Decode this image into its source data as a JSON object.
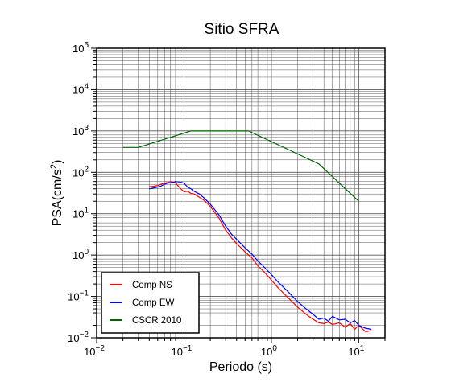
{
  "chart_data": {
    "type": "line",
    "title": "Sitio SFRA",
    "xlabel": "Periodo (s)",
    "ylabel": "PSA(cm/s2)",
    "xscale": "log",
    "yscale": "log",
    "xlim": [
      0.01,
      20
    ],
    "ylim": [
      0.01,
      100000
    ],
    "grid": true,
    "legend_position": "bottom-left",
    "x_tick_labels": [
      {
        "value": 0.01,
        "base": "10",
        "exp": "−2"
      },
      {
        "value": 0.1,
        "base": "10",
        "exp": "−1"
      },
      {
        "value": 1,
        "base": "10",
        "exp": "0"
      },
      {
        "value": 10,
        "base": "10",
        "exp": "1"
      }
    ],
    "y_tick_labels": [
      {
        "value": 0.01,
        "base": "10",
        "exp": "−2"
      },
      {
        "value": 0.1,
        "base": "10",
        "exp": "−1"
      },
      {
        "value": 1,
        "base": "10",
        "exp": "0"
      },
      {
        "value": 10,
        "base": "10",
        "exp": "1"
      },
      {
        "value": 100,
        "base": "10",
        "exp": "2"
      },
      {
        "value": 1000,
        "base": "10",
        "exp": "3"
      },
      {
        "value": 10000,
        "base": "10",
        "exp": "4"
      },
      {
        "value": 100000,
        "base": "10",
        "exp": "5"
      }
    ],
    "series": [
      {
        "name": "Comp NS",
        "color": "#ff0000",
        "x": [
          0.04,
          0.045,
          0.05,
          0.055,
          0.06,
          0.065,
          0.07,
          0.075,
          0.08,
          0.085,
          0.09,
          0.1,
          0.11,
          0.12,
          0.13,
          0.15,
          0.17,
          0.2,
          0.25,
          0.3,
          0.35,
          0.4,
          0.5,
          0.6,
          0.7,
          0.8,
          1.0,
          1.2,
          1.5,
          2.0,
          2.5,
          3.0,
          3.5,
          4.0,
          4.5,
          5.0,
          6.0,
          7.0,
          8.0,
          9.0,
          10.0,
          12.0,
          14.0
        ],
        "y": [
          45,
          46,
          48,
          52,
          55,
          57,
          60,
          58,
          56,
          48,
          42,
          34,
          35,
          31,
          30,
          25,
          21,
          15,
          8,
          4,
          2.6,
          1.9,
          1.2,
          0.85,
          0.55,
          0.42,
          0.25,
          0.16,
          0.1,
          0.055,
          0.037,
          0.028,
          0.023,
          0.022,
          0.024,
          0.021,
          0.023,
          0.018,
          0.022,
          0.016,
          0.02,
          0.014,
          0.015
        ]
      },
      {
        "name": "Comp EW",
        "color": "#0000ff",
        "x": [
          0.04,
          0.045,
          0.05,
          0.055,
          0.06,
          0.065,
          0.07,
          0.075,
          0.08,
          0.09,
          0.1,
          0.11,
          0.12,
          0.13,
          0.15,
          0.17,
          0.2,
          0.25,
          0.3,
          0.35,
          0.4,
          0.5,
          0.6,
          0.7,
          0.8,
          1.0,
          1.2,
          1.5,
          2.0,
          2.5,
          3.0,
          3.5,
          4.0,
          4.5,
          5.0,
          6.0,
          7.0,
          8.0,
          9.0,
          10.0,
          12.0,
          14.0
        ],
        "y": [
          40,
          42,
          44,
          47,
          52,
          55,
          56,
          57,
          60,
          58,
          55,
          44,
          40,
          35,
          30,
          24,
          17,
          9.5,
          5,
          3.2,
          2.4,
          1.5,
          1.05,
          0.72,
          0.55,
          0.34,
          0.22,
          0.14,
          0.075,
          0.05,
          0.037,
          0.028,
          0.03,
          0.025,
          0.033,
          0.027,
          0.028,
          0.023,
          0.026,
          0.02,
          0.017,
          0.016
        ]
      },
      {
        "name": "CSCR 2010",
        "color": "#006400",
        "x": [
          0.02,
          0.03,
          0.12,
          0.55,
          3.5,
          10.0
        ],
        "y": [
          400,
          400,
          1000,
          1000,
          160,
          20
        ]
      }
    ]
  }
}
